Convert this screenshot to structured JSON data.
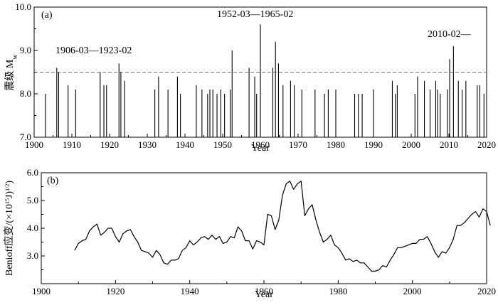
{
  "chart_data": [
    {
      "panel_label": "(a)",
      "type": "bar",
      "ylabel": "震级 M",
      "ylabel_sub": "w",
      "xlabel": "Year",
      "xlim": [
        1900,
        2020
      ],
      "ylim": [
        7.0,
        10.0
      ],
      "xticks": [
        "1900",
        "1910",
        "1920",
        "1930",
        "1940",
        "1950",
        "1960",
        "1970",
        "1980",
        "1990",
        "2000",
        "2010",
        "2020"
      ],
      "yticks": [
        "7.0",
        "8.0",
        "9.0",
        "10.0"
      ],
      "threshold": 8.5,
      "annotations": [
        "1906-03—1923-02",
        "1952-03—1965-02",
        "2010-02—"
      ],
      "points": [
        [
          1903,
          8.0
        ],
        [
          1906,
          8.6
        ],
        [
          1906.5,
          8.5
        ],
        [
          1909,
          8.2
        ],
        [
          1911,
          8.1
        ],
        [
          1917.5,
          8.5
        ],
        [
          1918.5,
          8.2
        ],
        [
          1919.2,
          8.2
        ],
        [
          1922.5,
          8.7
        ],
        [
          1923,
          8.5
        ],
        [
          1924,
          8.3
        ],
        [
          1932,
          8.1
        ],
        [
          1933,
          8.4
        ],
        [
          1935.5,
          8.1
        ],
        [
          1938,
          8.4
        ],
        [
          1938.8,
          8.0
        ],
        [
          1943,
          8.2
        ],
        [
          1944.5,
          8.1
        ],
        [
          1946,
          8.0
        ],
        [
          1946.6,
          8.1
        ],
        [
          1947.4,
          8.1
        ],
        [
          1948.5,
          8.0
        ],
        [
          1949.5,
          8.1
        ],
        [
          1950.5,
          8.0
        ],
        [
          1952,
          8.1
        ],
        [
          1952.5,
          9.0
        ],
        [
          1957,
          8.6
        ],
        [
          1958.5,
          8.4
        ],
        [
          1959,
          8.0
        ],
        [
          1960,
          9.6
        ],
        [
          1963.3,
          8.6
        ],
        [
          1964,
          9.2
        ],
        [
          1964.8,
          8.7
        ],
        [
          1966,
          8.2
        ],
        [
          1968,
          8.3
        ],
        [
          1969,
          8.2
        ],
        [
          1971,
          8.1
        ],
        [
          1974.5,
          8.1
        ],
        [
          1977,
          8.0
        ],
        [
          1978,
          8.1
        ],
        [
          1980,
          8.1
        ],
        [
          1985,
          8.0
        ],
        [
          1986,
          8.0
        ],
        [
          1987,
          8.0
        ],
        [
          1990,
          8.1
        ],
        [
          1995,
          8.3
        ],
        [
          1995.8,
          8.0
        ],
        [
          1996.3,
          8.2
        ],
        [
          2001,
          8.0
        ],
        [
          2001.7,
          8.4
        ],
        [
          2003.5,
          8.3
        ],
        [
          2005,
          8.1
        ],
        [
          2006.5,
          8.3
        ],
        [
          2007,
          8.1
        ],
        [
          2007.7,
          8.0
        ],
        [
          2009.6,
          8.1
        ],
        [
          2010.2,
          8.8
        ],
        [
          2011.2,
          9.1
        ],
        [
          2012.5,
          8.3
        ],
        [
          2013.5,
          8.1
        ],
        [
          2014.5,
          8.3
        ],
        [
          2017.5,
          8.2
        ],
        [
          2018.2,
          8.2
        ],
        [
          2019.3,
          8.0
        ]
      ]
    },
    {
      "panel_label": "(b)",
      "type": "line",
      "ylabel": "Benioff应变/(×10",
      "ylabel_exp1": "15",
      "ylabel_mid": "J)",
      "ylabel_exp2": "1/2",
      "ylabel_end": ")",
      "xlabel": "Year",
      "xlim": [
        1900,
        2020
      ],
      "ylim": [
        2.0,
        6.0
      ],
      "xticks": [
        "1900",
        "1920",
        "1940",
        "1960",
        "1980",
        "2000",
        "2020"
      ],
      "yticks": [
        "3.0",
        "4.0",
        "5.0",
        "6.0"
      ],
      "points": [
        [
          1909,
          3.2
        ],
        [
          1910,
          3.45
        ],
        [
          1911,
          3.55
        ],
        [
          1912,
          3.6
        ],
        [
          1913,
          3.9
        ],
        [
          1914,
          4.05
        ],
        [
          1915,
          4.15
        ],
        [
          1916,
          3.75
        ],
        [
          1917,
          3.85
        ],
        [
          1918,
          4.0
        ],
        [
          1919,
          4.0
        ],
        [
          1920,
          3.7
        ],
        [
          1921,
          3.5
        ],
        [
          1922,
          3.8
        ],
        [
          1923,
          3.9
        ],
        [
          1924,
          3.95
        ],
        [
          1925,
          3.7
        ],
        [
          1926,
          3.5
        ],
        [
          1927,
          3.2
        ],
        [
          1928,
          3.15
        ],
        [
          1929,
          3.1
        ],
        [
          1930,
          2.95
        ],
        [
          1931,
          3.2
        ],
        [
          1932,
          3.05
        ],
        [
          1933,
          2.75
        ],
        [
          1934,
          2.7
        ],
        [
          1935,
          2.85
        ],
        [
          1936,
          2.85
        ],
        [
          1937,
          2.9
        ],
        [
          1938,
          3.2
        ],
        [
          1939,
          3.3
        ],
        [
          1940,
          3.55
        ],
        [
          1941,
          3.4
        ],
        [
          1942,
          3.5
        ],
        [
          1943,
          3.65
        ],
        [
          1944,
          3.7
        ],
        [
          1945,
          3.6
        ],
        [
          1946,
          3.75
        ],
        [
          1947,
          3.6
        ],
        [
          1948,
          3.7
        ],
        [
          1949,
          3.45
        ],
        [
          1950,
          3.5
        ],
        [
          1951,
          3.7
        ],
        [
          1952,
          3.65
        ],
        [
          1953,
          4.05
        ],
        [
          1954,
          3.9
        ],
        [
          1955,
          3.55
        ],
        [
          1956,
          3.55
        ],
        [
          1957,
          3.25
        ],
        [
          1958,
          3.55
        ],
        [
          1959,
          3.5
        ],
        [
          1960,
          3.4
        ],
        [
          1961,
          4.5
        ],
        [
          1962,
          4.45
        ],
        [
          1963,
          3.95
        ],
        [
          1964,
          4.3
        ],
        [
          1965,
          5.2
        ],
        [
          1966,
          5.6
        ],
        [
          1967,
          5.7
        ],
        [
          1968,
          5.4
        ],
        [
          1969,
          5.6
        ],
        [
          1970,
          5.7
        ],
        [
          1971,
          4.45
        ],
        [
          1972,
          4.7
        ],
        [
          1973,
          4.85
        ],
        [
          1974,
          4.3
        ],
        [
          1975,
          3.85
        ],
        [
          1976,
          3.5
        ],
        [
          1977,
          3.6
        ],
        [
          1978,
          3.75
        ],
        [
          1979,
          3.4
        ],
        [
          1980,
          3.3
        ],
        [
          1981,
          3.1
        ],
        [
          1982,
          2.85
        ],
        [
          1983,
          2.9
        ],
        [
          1984,
          2.8
        ],
        [
          1985,
          2.85
        ],
        [
          1986,
          2.75
        ],
        [
          1987,
          2.75
        ],
        [
          1988,
          2.6
        ],
        [
          1989,
          2.45
        ],
        [
          1990,
          2.45
        ],
        [
          1991,
          2.5
        ],
        [
          1992,
          2.65
        ],
        [
          1993,
          2.6
        ],
        [
          1994,
          2.85
        ],
        [
          1995,
          3.05
        ],
        [
          1996,
          3.3
        ],
        [
          1997,
          3.3
        ],
        [
          1998,
          3.35
        ],
        [
          1999,
          3.4
        ],
        [
          2000,
          3.45
        ],
        [
          2001,
          3.45
        ],
        [
          2002,
          3.6
        ],
        [
          2003,
          3.6
        ],
        [
          2004,
          3.7
        ],
        [
          2005,
          3.45
        ],
        [
          2006,
          3.15
        ],
        [
          2007,
          2.95
        ],
        [
          2008,
          3.15
        ],
        [
          2009,
          3.1
        ],
        [
          2010,
          3.3
        ],
        [
          2011,
          3.6
        ],
        [
          2012,
          4.1
        ],
        [
          2013,
          4.1
        ],
        [
          2014,
          4.2
        ],
        [
          2015,
          4.35
        ],
        [
          2016,
          4.5
        ],
        [
          2017,
          4.6
        ],
        [
          2018,
          4.4
        ],
        [
          2019,
          4.7
        ],
        [
          2020,
          4.6
        ],
        [
          2021,
          4.1
        ]
      ]
    }
  ]
}
